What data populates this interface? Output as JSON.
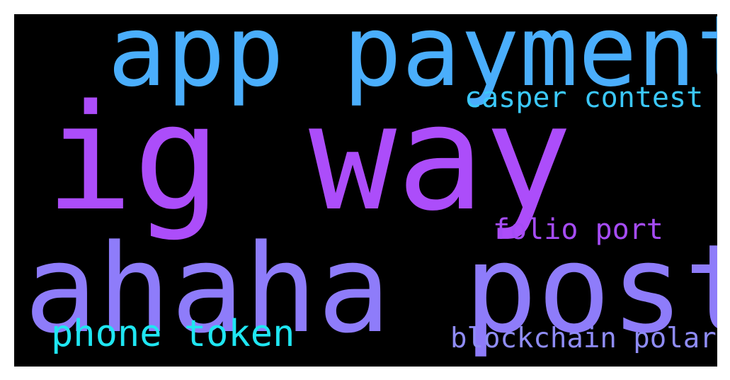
{
  "cloud": {
    "background": "#000000",
    "words": {
      "ig_way": {
        "text": "ig way",
        "color": "#ac4dfa"
      },
      "ahaha_post": {
        "text": "ahaha post",
        "color": "#8e7cfa"
      },
      "app_payment": {
        "text": "app payment",
        "color": "#4aaefc"
      },
      "casper_contest": {
        "text": "casper contest",
        "color": "#3bc8fa"
      },
      "folio_port": {
        "text": "folio port",
        "color": "#a64cf6"
      },
      "phone_token": {
        "text": "phone token",
        "color": "#1fe6f2"
      },
      "blockchain_polar": {
        "text": "blockchain polar",
        "color": "#8f8cf6"
      }
    }
  }
}
